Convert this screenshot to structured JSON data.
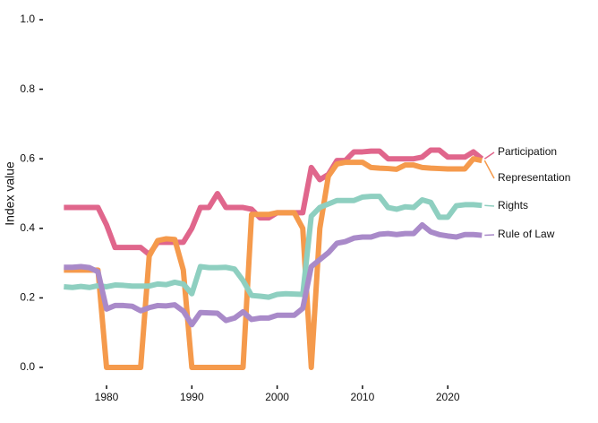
{
  "chart_data": {
    "type": "line",
    "y_label": "Index value",
    "x": [
      1975,
      1976,
      1977,
      1978,
      1979,
      1980,
      1981,
      1982,
      1983,
      1984,
      1985,
      1986,
      1987,
      1988,
      1989,
      1990,
      1991,
      1992,
      1993,
      1994,
      1995,
      1996,
      1997,
      1998,
      1999,
      2000,
      2001,
      2002,
      2003,
      2004,
      2005,
      2006,
      2007,
      2008,
      2009,
      2010,
      2011,
      2012,
      2013,
      2014,
      2015,
      2016,
      2017,
      2018,
      2019,
      2020,
      2021,
      2022,
      2023,
      2024
    ],
    "series": [
      {
        "name": "Participation",
        "color": "#e0668c",
        "values": [
          0.46,
          0.46,
          0.46,
          0.46,
          0.46,
          0.41,
          0.345,
          0.345,
          0.345,
          0.345,
          0.325,
          0.36,
          0.36,
          0.36,
          0.36,
          0.4,
          0.46,
          0.46,
          0.5,
          0.46,
          0.46,
          0.46,
          0.455,
          0.43,
          0.43,
          0.445,
          0.445,
          0.445,
          0.445,
          0.575,
          0.54,
          0.555,
          0.595,
          0.595,
          0.62,
          0.62,
          0.622,
          0.622,
          0.6,
          0.6,
          0.6,
          0.6,
          0.605,
          0.625,
          0.625,
          0.605,
          0.605,
          0.605,
          0.62,
          0.6
        ]
      },
      {
        "name": "Representation",
        "color": "#f59a4c",
        "values": [
          0.28,
          0.28,
          0.28,
          0.28,
          0.28,
          0.0,
          0.0,
          0.0,
          0.0,
          0.0,
          0.32,
          0.365,
          0.37,
          0.368,
          0.28,
          0.0,
          0.0,
          0.0,
          0.0,
          0.0,
          0.0,
          0.0,
          0.44,
          0.44,
          0.44,
          0.445,
          0.445,
          0.445,
          0.4,
          0.0,
          0.4,
          0.55,
          0.585,
          0.59,
          0.59,
          0.59,
          0.575,
          0.573,
          0.572,
          0.57,
          0.582,
          0.582,
          0.575,
          0.573,
          0.572,
          0.571,
          0.571,
          0.571,
          0.6,
          0.595
        ]
      },
      {
        "name": "Rights",
        "color": "#8ecfc0",
        "values": [
          0.232,
          0.23,
          0.233,
          0.23,
          0.235,
          0.232,
          0.237,
          0.236,
          0.234,
          0.234,
          0.234,
          0.24,
          0.238,
          0.245,
          0.24,
          0.212,
          0.29,
          0.287,
          0.287,
          0.288,
          0.283,
          0.25,
          0.207,
          0.205,
          0.202,
          0.21,
          0.212,
          0.211,
          0.21,
          0.435,
          0.46,
          0.47,
          0.48,
          0.48,
          0.48,
          0.49,
          0.492,
          0.492,
          0.46,
          0.455,
          0.462,
          0.46,
          0.482,
          0.475,
          0.432,
          0.432,
          0.465,
          0.468,
          0.468,
          0.466
        ]
      },
      {
        "name": "Rule of Law",
        "color": "#a98ac9",
        "values": [
          0.288,
          0.288,
          0.29,
          0.287,
          0.275,
          0.168,
          0.178,
          0.178,
          0.176,
          0.163,
          0.172,
          0.178,
          0.177,
          0.18,
          0.162,
          0.123,
          0.158,
          0.157,
          0.156,
          0.135,
          0.142,
          0.16,
          0.138,
          0.142,
          0.142,
          0.15,
          0.15,
          0.15,
          0.17,
          0.29,
          0.31,
          0.33,
          0.357,
          0.362,
          0.372,
          0.375,
          0.375,
          0.383,
          0.385,
          0.382,
          0.385,
          0.385,
          0.41,
          0.39,
          0.382,
          0.378,
          0.375,
          0.382,
          0.382,
          0.38
        ]
      }
    ],
    "xlim": [
      1973,
      2030
    ],
    "xticks": [
      1980,
      1990,
      2000,
      2010,
      2020
    ],
    "ylim": [
      0,
      1
    ],
    "yticks": [
      {
        "value": 0,
        "label": "0.0"
      },
      {
        "value": 0.2,
        "label": "0.2"
      },
      {
        "value": 0.4,
        "label": "0.4"
      },
      {
        "value": 0.6,
        "label": "0.6"
      },
      {
        "value": 0.8,
        "label": "0.8"
      },
      {
        "value": 1,
        "label": "1.0"
      }
    ],
    "grid": false
  }
}
